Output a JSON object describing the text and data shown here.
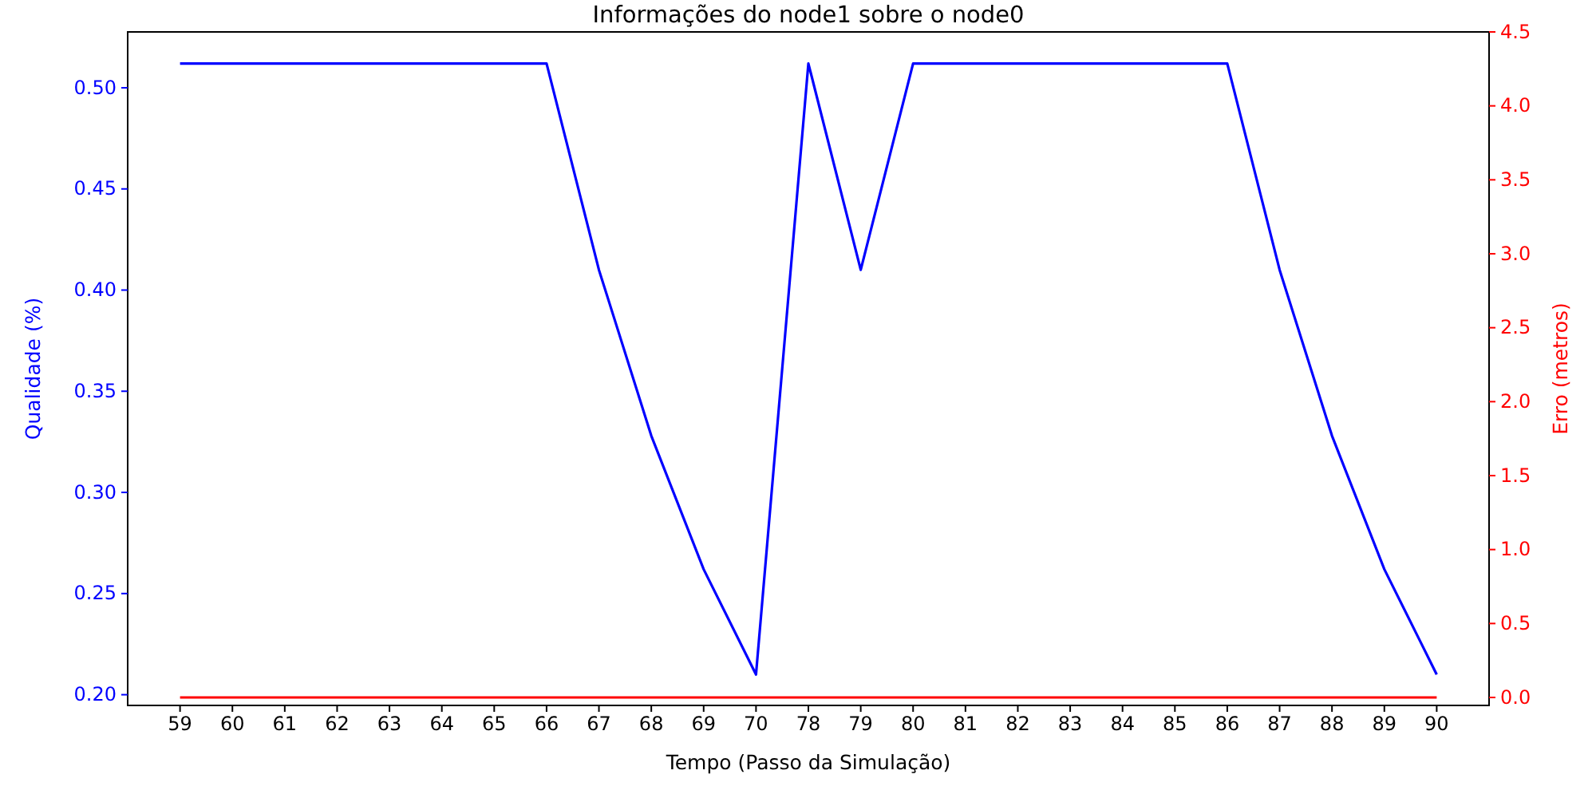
{
  "chart_data": {
    "type": "line",
    "title": "Informações do node1 sobre o node0",
    "xlabel": "Tempo (Passo da Simulação)",
    "ylabel": "Qualidade (%)",
    "y2label": "Erro (metros)",
    "categories": [
      "59",
      "60",
      "61",
      "62",
      "63",
      "64",
      "65",
      "66",
      "67",
      "68",
      "69",
      "70",
      "78",
      "79",
      "80",
      "81",
      "82",
      "83",
      "84",
      "85",
      "86",
      "87",
      "88",
      "89",
      "90"
    ],
    "series": [
      {
        "color": "#0000ff",
        "values": [
          0.512,
          0.512,
          0.512,
          0.512,
          0.512,
          0.512,
          0.512,
          0.512,
          0.41,
          0.328,
          0.262,
          0.21,
          0.512,
          0.41,
          0.512,
          0.512,
          0.512,
          0.512,
          0.512,
          0.512,
          0.512,
          0.41,
          0.328,
          0.262,
          0.21
        ]
      },
      {
        "color": "#ff0000",
        "axis": "y2",
        "values": [
          0,
          0,
          0,
          0,
          0,
          0,
          0,
          0,
          0,
          0,
          0,
          0,
          0,
          0,
          0,
          0,
          0,
          0,
          0,
          0,
          0,
          0,
          0,
          0,
          0
        ]
      }
    ],
    "ylim": [
      0.1947,
      0.5276
    ],
    "yticks": [
      {
        "value": 0.2,
        "label": "0.20"
      },
      {
        "value": 0.25,
        "label": "0.25"
      },
      {
        "value": 0.3,
        "label": "0.30"
      },
      {
        "value": 0.35,
        "label": "0.35"
      },
      {
        "value": 0.4,
        "label": "0.40"
      },
      {
        "value": 0.45,
        "label": "0.45"
      },
      {
        "value": 0.5,
        "label": "0.50"
      }
    ],
    "y2lim": [
      -0.054,
      4.5
    ],
    "y2ticks": [
      {
        "value": 0,
        "label": "0.0"
      },
      {
        "value": 0.5,
        "label": "0.5"
      },
      {
        "value": 1,
        "label": "1.0"
      },
      {
        "value": 1.5,
        "label": "1.5"
      },
      {
        "value": 2,
        "label": "2.0"
      },
      {
        "value": 2.5,
        "label": "2.5"
      },
      {
        "value": 3,
        "label": "3.0"
      },
      {
        "value": 3.5,
        "label": "3.5"
      },
      {
        "value": 4,
        "label": "4.0"
      },
      {
        "value": 4.5,
        "label": "4.5"
      }
    ],
    "grid": false,
    "marker": "none",
    "line_style": "solid"
  }
}
